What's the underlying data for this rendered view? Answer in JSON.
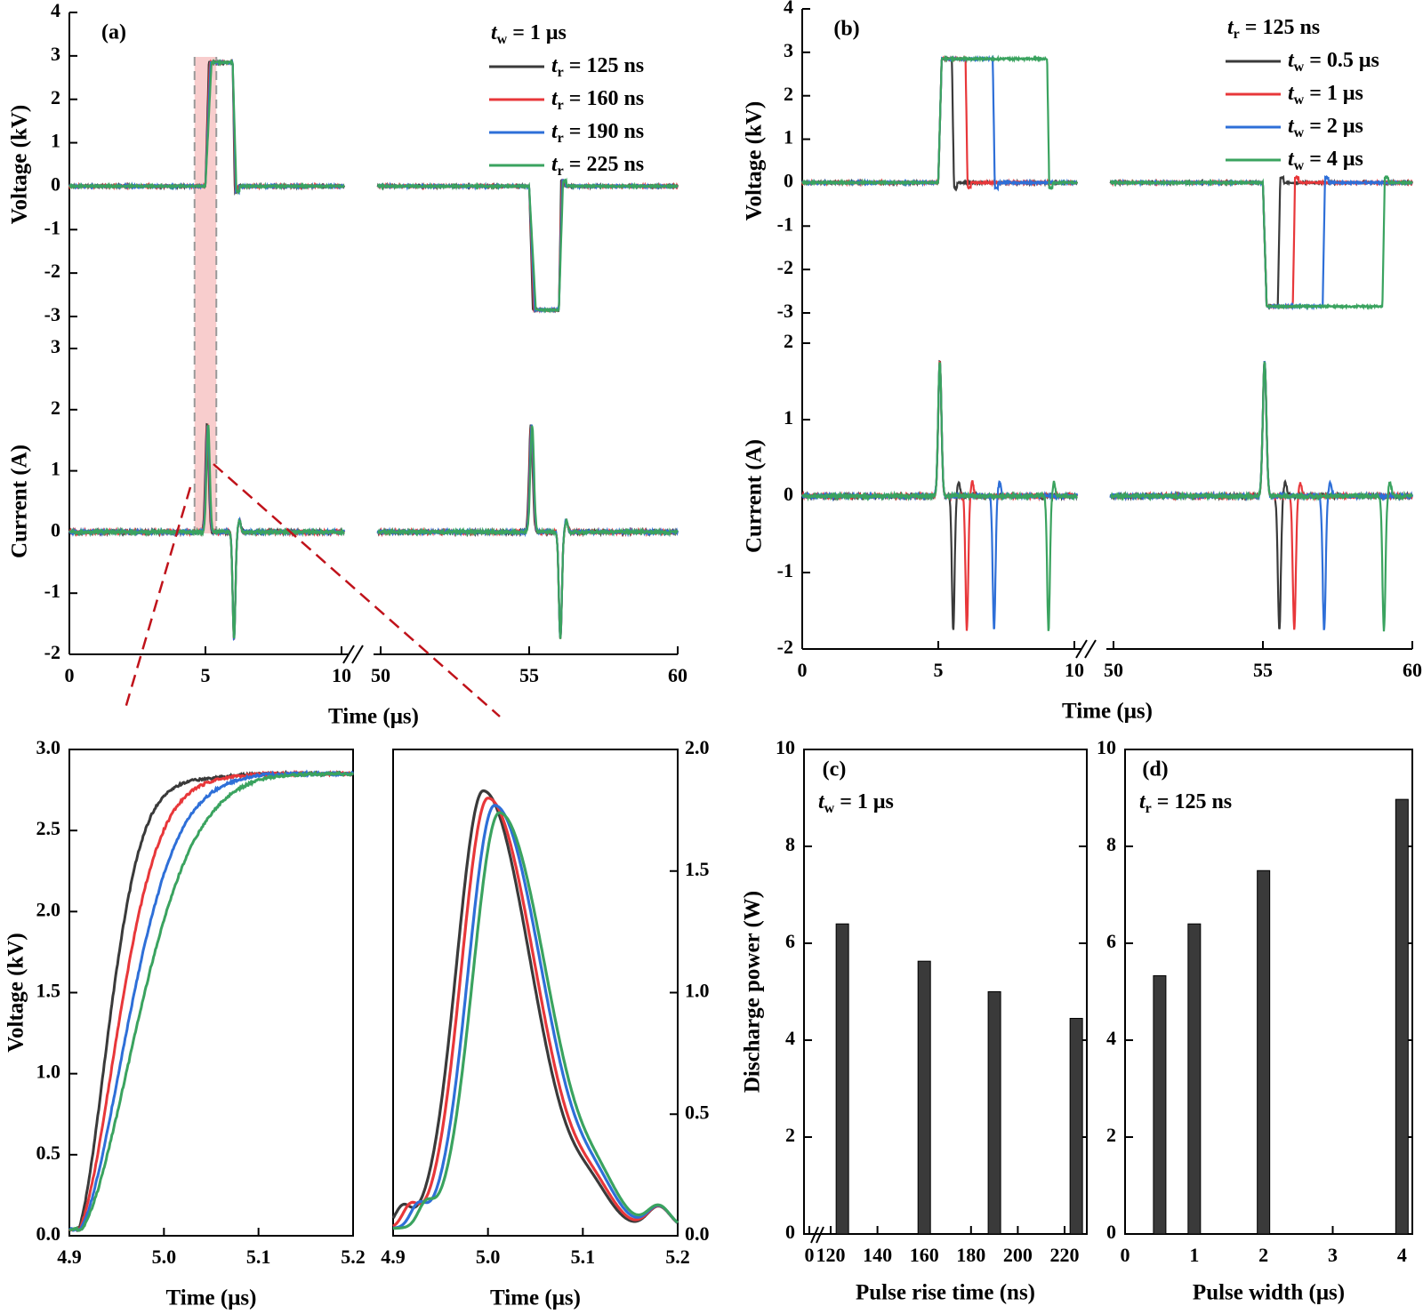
{
  "colors": {
    "black": "#3a3a3a",
    "red": "#e8373a",
    "blue": "#2e6fd8",
    "green": "#3aa35f",
    "bar": "#3a3a3a",
    "highlight": "#f5b8b8",
    "zoom_line": "#c0121a"
  },
  "chart_data": [
    {
      "id": "a",
      "type": "line",
      "panel_label": "(a)",
      "xlabel": "Time (μs)",
      "ylabel_top": "Voltage (kV)",
      "ylabel_bottom": "Current (A)",
      "broken_x_axis": true,
      "x_segments": [
        [
          0,
          10
        ],
        [
          50,
          60
        ]
      ],
      "xticks": [
        [
          "0",
          "5",
          "10"
        ],
        [
          "50",
          "55",
          "60"
        ]
      ],
      "ylim_top": [
        -3,
        4
      ],
      "yticks_top": [
        "4",
        "3",
        "2",
        "1",
        "0",
        "-1",
        "-2",
        "-3"
      ],
      "ylim_bottom": [
        -2,
        3
      ],
      "yticks_bottom": [
        "3",
        "2",
        "1",
        "0",
        "-1",
        "-2"
      ],
      "legend_title": {
        "sym": "t",
        "sub": "w",
        "rest": " = 1 μs"
      },
      "legend": [
        {
          "sym": "t",
          "sub": "r",
          "rest": " = 125 ns",
          "color": "#3a3a3a"
        },
        {
          "sym": "t",
          "sub": "r",
          "rest": " = 160 ns",
          "color": "#e8373a"
        },
        {
          "sym": "t",
          "sub": "r",
          "rest": " = 190 ns",
          "color": "#2e6fd8"
        },
        {
          "sym": "t",
          "sub": "r",
          "rest": " = 225 ns",
          "color": "#3aa35f"
        }
      ],
      "series": [
        {
          "rise_ns": 125,
          "pulse_width_us": 1,
          "voltage_peak_kv": 2.85,
          "current_peak_a": 1.75
        },
        {
          "rise_ns": 160,
          "pulse_width_us": 1,
          "voltage_peak_kv": 2.85,
          "current_peak_a": 1.75
        },
        {
          "rise_ns": 190,
          "pulse_width_us": 1,
          "voltage_peak_kv": 2.85,
          "current_peak_a": 1.75
        },
        {
          "rise_ns": 225,
          "pulse_width_us": 1,
          "voltage_peak_kv": 2.85,
          "current_peak_a": 1.75
        }
      ],
      "pulses_us": {
        "positive_start": 5,
        "negative_start": 55
      },
      "highlight_x_us": [
        4.6,
        5.4
      ]
    },
    {
      "id": "b",
      "type": "line",
      "panel_label": "(b)",
      "xlabel": "Time (μs)",
      "ylabel_top": "Voltage (kV)",
      "ylabel_bottom": "Current (A)",
      "broken_x_axis": true,
      "x_segments": [
        [
          0,
          10
        ],
        [
          50,
          60
        ]
      ],
      "xticks": [
        [
          "0",
          "5",
          "10"
        ],
        [
          "50",
          "55",
          "60"
        ]
      ],
      "ylim_top": [
        -3,
        4
      ],
      "yticks_top": [
        "4",
        "3",
        "2",
        "1",
        "0",
        "-1",
        "-2",
        "-3"
      ],
      "ylim_bottom": [
        -2,
        2
      ],
      "yticks_bottom": [
        "2",
        "1",
        "0",
        "-1",
        "-2"
      ],
      "legend_title": {
        "sym": "t",
        "sub": "r",
        "rest": " = 125 ns"
      },
      "legend": [
        {
          "sym": "t",
          "sub": "w",
          "rest": " = 0.5 μs",
          "color": "#3a3a3a"
        },
        {
          "sym": "t",
          "sub": "w",
          "rest": " = 1 μs",
          "color": "#e8373a"
        },
        {
          "sym": "t",
          "sub": "w",
          "rest": " = 2 μs",
          "color": "#2e6fd8"
        },
        {
          "sym": "t",
          "sub": "w",
          "rest": " = 4 μs",
          "color": "#3aa35f"
        }
      ],
      "series": [
        {
          "pulse_width_us": 0.5,
          "rise_ns": 125,
          "voltage_peak_kv": 2.85,
          "current_peak_a": 1.75
        },
        {
          "pulse_width_us": 1,
          "rise_ns": 125,
          "voltage_peak_kv": 2.85,
          "current_peak_a": 1.75
        },
        {
          "pulse_width_us": 2,
          "rise_ns": 125,
          "voltage_peak_kv": 2.85,
          "current_peak_a": 1.75
        },
        {
          "pulse_width_us": 4,
          "rise_ns": 125,
          "voltage_peak_kv": 2.85,
          "current_peak_a": 1.75
        }
      ]
    },
    {
      "id": "zoom-voltage",
      "type": "line",
      "xlabel": "Time (μs)",
      "ylabel": "Voltage (kV)",
      "xlim": [
        4.9,
        5.2
      ],
      "xticks": [
        "4.9",
        "5.0",
        "5.1",
        "5.2"
      ],
      "ylim": [
        0,
        3
      ],
      "yticks": [
        "0.0",
        "0.5",
        "1.0",
        "1.5",
        "2.0",
        "2.5",
        "3.0"
      ],
      "series": [
        {
          "rise_ns": 125,
          "color": "#3a3a3a"
        },
        {
          "rise_ns": 160,
          "color": "#e8373a"
        },
        {
          "rise_ns": 190,
          "color": "#2e6fd8"
        },
        {
          "rise_ns": 225,
          "color": "#3aa35f"
        }
      ]
    },
    {
      "id": "zoom-current",
      "type": "line",
      "xlabel": "Time (μs)",
      "xlim": [
        4.9,
        5.2
      ],
      "xticks": [
        "4.9",
        "5.0",
        "5.1",
        "5.2"
      ],
      "ylim": [
        0,
        2
      ],
      "yticks": [
        "0.0",
        "0.5",
        "1.0",
        "1.5",
        "2.0"
      ],
      "series": [
        {
          "rise_ns": 125,
          "color": "#3a3a3a",
          "peak_a": 1.8,
          "peak_time_us": 4.995
        },
        {
          "rise_ns": 160,
          "color": "#e8373a",
          "peak_a": 1.77,
          "peak_time_us": 5.0
        },
        {
          "rise_ns": 190,
          "color": "#2e6fd8",
          "peak_a": 1.74,
          "peak_time_us": 5.007
        },
        {
          "rise_ns": 225,
          "color": "#3aa35f",
          "peak_a": 1.71,
          "peak_time_us": 5.012
        }
      ]
    },
    {
      "id": "c",
      "type": "bar",
      "panel_label": "(c)",
      "annotation": {
        "sym": "t",
        "sub": "w",
        "rest": " = 1 μs"
      },
      "xlabel": "Pulse rise time (ns)",
      "ylabel": "Discharge power (W)",
      "xticks": [
        "0",
        "120",
        "140",
        "160",
        "180",
        "200",
        "220"
      ],
      "ylim": [
        0,
        10
      ],
      "yticks": [
        "0",
        "2",
        "4",
        "6",
        "8",
        "10"
      ],
      "x": [
        125,
        160,
        190,
        225
      ],
      "values": [
        6.4,
        5.63,
        5.0,
        4.45
      ]
    },
    {
      "id": "d",
      "type": "bar",
      "panel_label": "(d)",
      "annotation": {
        "sym": "t",
        "sub": "r",
        "rest": " = 125 ns"
      },
      "xlabel": "Pulse width (μs)",
      "xlim": [
        0,
        4.15
      ],
      "xticks": [
        "0",
        "1",
        "2",
        "3",
        "4"
      ],
      "ylim": [
        0,
        10
      ],
      "yticks": [
        "0",
        "2",
        "4",
        "6",
        "8",
        "10"
      ],
      "x": [
        0.5,
        1,
        2,
        4
      ],
      "values": [
        5.33,
        6.4,
        7.5,
        8.97
      ]
    }
  ]
}
